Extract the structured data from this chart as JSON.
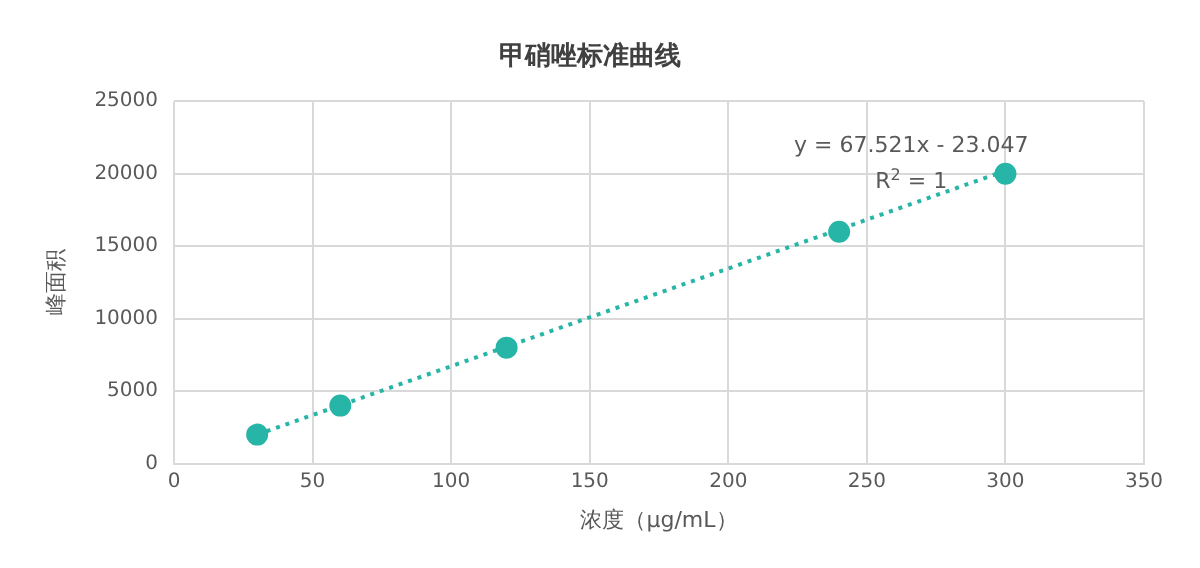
{
  "chart_data": {
    "type": "scatter",
    "title": "甲硝唑标准曲线",
    "xlabel": "浓度（μg/mL）",
    "ylabel": "峰面积",
    "series": [
      {
        "type": "scatter",
        "color": "#26b5a6",
        "x": [
          30,
          60,
          120,
          240,
          300
        ],
        "values": [
          2000,
          4000,
          8000,
          16000,
          20000
        ]
      },
      {
        "type": "line",
        "color": "#26b5a6",
        "x": [
          30,
          300
        ],
        "values": [
          2000,
          20200
        ],
        "line_style": "dotted",
        "marker": "none"
      }
    ],
    "annotations": [
      "y = 67.521x - 23.047",
      "R$^{2}$ = 1"
    ],
    "xlim": [
      0,
      350
    ],
    "xticks": [
      0,
      50,
      100,
      150,
      200,
      250,
      300,
      350
    ],
    "ylim": [
      0,
      25000
    ],
    "yticks": [
      0,
      5000,
      10000,
      15000,
      20000,
      25000
    ],
    "grid": true,
    "legend": false,
    "marker": "circle"
  }
}
